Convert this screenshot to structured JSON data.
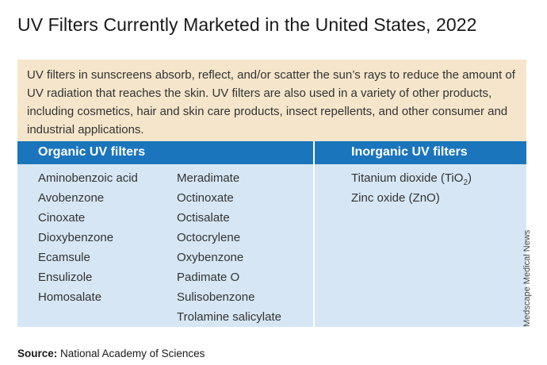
{
  "title": "UV Filters Currently Marketed in the United States, 2022",
  "intro": "UV filters in sunscreens absorb, reflect, and/or scatter the sun’s rays to reduce the amount of UV radiation that reaches the skin. UV filters are also used in a variety of other products, including cosmetics, hair and skin care products, insect repellents, and other consumer and industrial applications.",
  "table": {
    "headers": {
      "organic": "Organic UV filters",
      "inorganic": "Inorganic UV filters"
    },
    "organic_col1": [
      "Aminobenzoic acid",
      "Avobenzone",
      "Cinoxate",
      "Dioxybenzone",
      "Ecamsule",
      "Ensulizole",
      "Homosalate"
    ],
    "organic_col2": [
      "Meradimate",
      "Octinoxate",
      "Octisalate",
      "Octocrylene",
      "Oxybenzone",
      "Padimate O",
      "Sulisobenzone",
      "Trolamine salicylate"
    ],
    "inorganic": {
      "titanium": {
        "name": "Titanium dioxide (TiO",
        "subscript": "2",
        "close": ")"
      },
      "zinc": "Zinc oxide (ZnO)"
    }
  },
  "credit": "Medscape Medical News",
  "source": {
    "label": "Source:",
    "text": " National Academy of Sciences"
  },
  "colors": {
    "header_blue": "#1b75bc",
    "body_blue": "#d6e6f4",
    "intro_tan": "#f5e6cb"
  }
}
